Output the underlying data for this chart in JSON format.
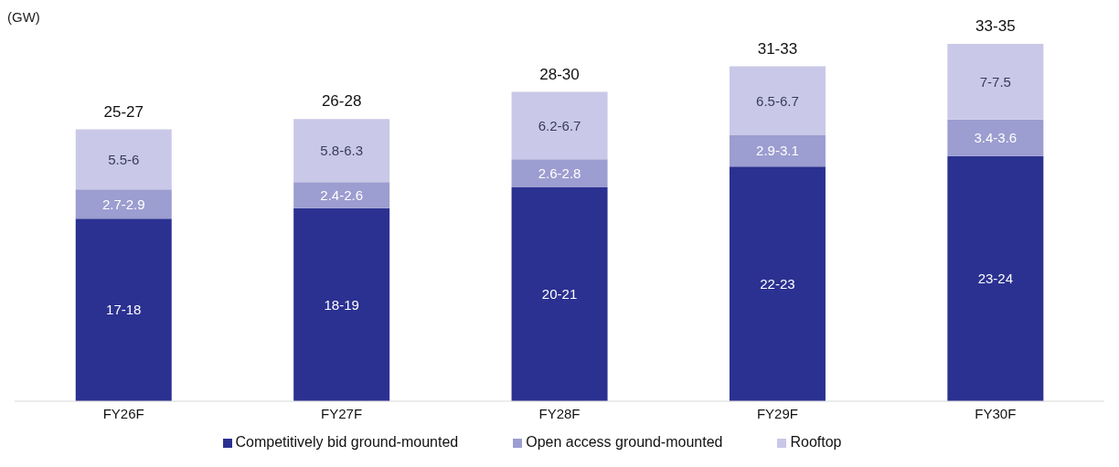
{
  "chart_data": {
    "type": "bar",
    "stacked": true,
    "ylabel": "(GW)",
    "categories": [
      "FY26F",
      "FY27F",
      "FY28F",
      "FY29F",
      "FY30F"
    ],
    "series": [
      {
        "name": "Competitively bid ground-mounted",
        "color": "#2b3190",
        "values": [
          17.5,
          18.5,
          20.5,
          22.5,
          23.5
        ],
        "value_labels": [
          "17-18",
          "18-19",
          "20-21",
          "22-23",
          "23-24"
        ]
      },
      {
        "name": "Open access ground-mounted",
        "color": "#9c9dd0",
        "values": [
          2.8,
          2.5,
          2.7,
          3.0,
          3.5
        ],
        "value_labels": [
          "2.7-2.9",
          "2.4-2.6",
          "2.6-2.8",
          "2.9-3.1",
          "3.4-3.6"
        ]
      },
      {
        "name": "Rooftop",
        "color": "#c9c8e8",
        "values": [
          5.75,
          6.05,
          6.45,
          6.6,
          7.25
        ],
        "value_labels": [
          "5.5-6",
          "5.8-6.3",
          "6.2-6.7",
          "6.5-6.7",
          "7-7.5"
        ]
      }
    ],
    "totals": [
      "25-27",
      "26-28",
      "28-30",
      "31-33",
      "33-35"
    ],
    "grid": false,
    "legend": "bottom"
  }
}
